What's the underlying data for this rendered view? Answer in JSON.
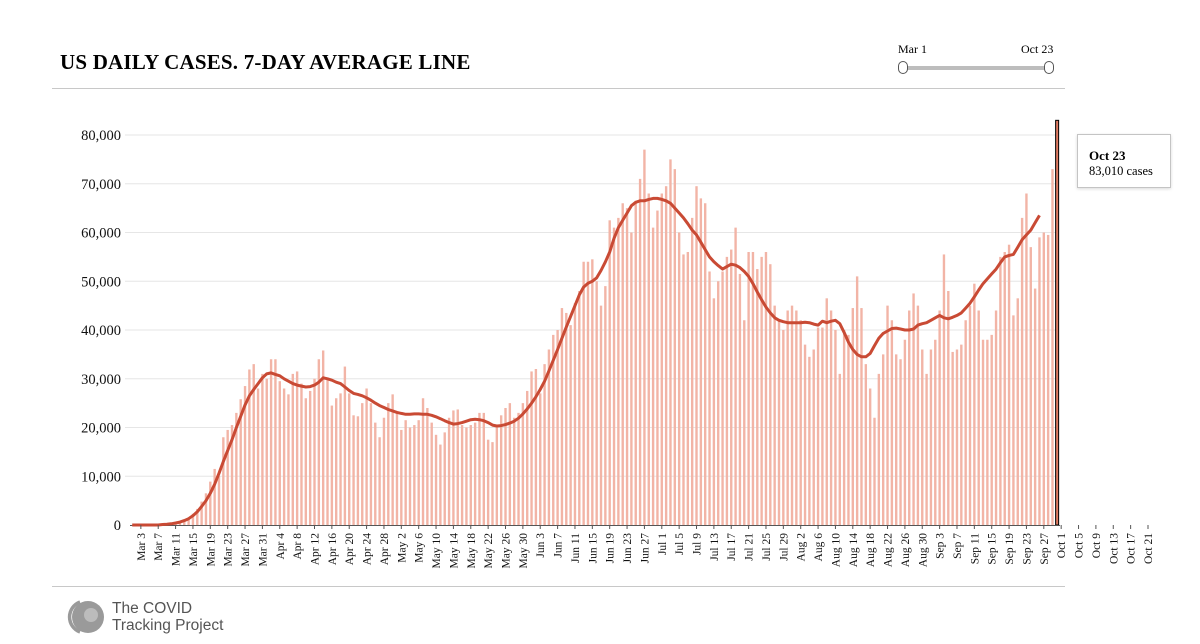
{
  "title": "US DAILY CASES. 7-DAY AVERAGE LINE",
  "slider": {
    "start_label": "Mar 1",
    "end_label": "Oct 23"
  },
  "tooltip": {
    "date": "Oct 23",
    "value": "83,010 cases"
  },
  "logo": {
    "line1": "The COVID",
    "line2": "Tracking Project"
  },
  "colors": {
    "bar": "#f2b4a6",
    "line": "#c94a34",
    "highlight_bar": "#e07a62",
    "grid": "#e6e6e6"
  },
  "chart_data": {
    "type": "bar",
    "title": "US DAILY CASES. 7-DAY AVERAGE LINE",
    "xlabel": "",
    "ylabel": "",
    "ylim": [
      0,
      80000
    ],
    "grid": true,
    "y_ticks": [
      "0",
      "10,000",
      "20,000",
      "30,000",
      "40,000",
      "50,000",
      "60,000",
      "70,000",
      "80,000"
    ],
    "y_tick_values": [
      0,
      10000,
      20000,
      30000,
      40000,
      50000,
      60000,
      70000,
      80000
    ],
    "x_tick_labels": [
      "Mar 3",
      "Mar 7",
      "Mar 11",
      "Mar 15",
      "Mar 19",
      "Mar 23",
      "Mar 27",
      "Mar 31",
      "Apr 4",
      "Apr 8",
      "Apr 12",
      "Apr 16",
      "Apr 20",
      "Apr 24",
      "Apr 28",
      "May 2",
      "May 6",
      "May 10",
      "May 14",
      "May 18",
      "May 22",
      "May 26",
      "May 30",
      "Jun 3",
      "Jun 7",
      "Jun 11",
      "Jun 15",
      "Jun 19",
      "Jun 23",
      "Jun 27",
      "Jul 1",
      "Jul 5",
      "Jul 9",
      "Jul 13",
      "Jul 17",
      "Jul 21",
      "Jul 25",
      "Jul 29",
      "Aug 2",
      "Aug 6",
      "Aug 10",
      "Aug 14",
      "Aug 18",
      "Aug 22",
      "Aug 26",
      "Aug 30",
      "Sep 3",
      "Sep 7",
      "Sep 11",
      "Sep 15",
      "Sep 19",
      "Sep 23",
      "Sep 27",
      "Oct 1",
      "Oct 5",
      "Oct 9",
      "Oct 13",
      "Oct 17",
      "Oct 21"
    ],
    "series": [
      {
        "type": "bar",
        "x_start": "Mar 1",
        "x_end": "Oct 23",
        "values": [
          0,
          0,
          0,
          0,
          0,
          0,
          0,
          100,
          200,
          300,
          500,
          700,
          1000,
          1500,
          2300,
          3300,
          4800,
          6500,
          8900,
          11500,
          10000,
          18000,
          19500,
          20500,
          23000,
          25800,
          28500,
          31900,
          33000,
          28000,
          31000,
          30000,
          34000,
          34000,
          29500,
          28000,
          26800,
          31000,
          31500,
          29000,
          26000,
          27500,
          30000,
          34000,
          35800,
          30000,
          24500,
          26000,
          27000,
          32500,
          27000,
          22500,
          22300,
          25000,
          28000,
          25000,
          21000,
          18000,
          22000,
          25000,
          26800,
          23000,
          19500,
          21500,
          20000,
          20500,
          21500,
          26000,
          24000,
          21000,
          18500,
          16500,
          19000,
          22000,
          23500,
          23700,
          20500,
          20000,
          20500,
          21000,
          23000,
          23000,
          17500,
          17000,
          20000,
          22500,
          24000,
          25000,
          22000,
          23000,
          25000,
          27500,
          31500,
          32000,
          27000,
          33000,
          36000,
          39000,
          40000,
          44500,
          43500,
          41000,
          45500,
          48000,
          54000,
          54000,
          54500,
          50000,
          45000,
          49000,
          62500,
          61000,
          63000,
          66000,
          65000,
          60000,
          66500,
          71000,
          77000,
          68000,
          61000,
          64500,
          68000,
          69500,
          75000,
          73000,
          60000,
          55500,
          56000,
          63000,
          69500,
          67000,
          66000,
          52000,
          46500,
          50000,
          52000,
          55000,
          56500,
          61000,
          51500,
          42000,
          56000,
          56000,
          52500,
          55000,
          56000,
          53500,
          45000,
          42000,
          40000,
          44000,
          45000,
          44000,
          42000,
          37000,
          34500,
          36000,
          40500,
          40500,
          46500,
          44000,
          40000,
          31000,
          40000,
          39000,
          44500,
          51000,
          44500,
          33000,
          28000,
          22000,
          31000,
          35000,
          45000,
          42000,
          35000,
          34000,
          38000,
          44000,
          47500,
          45000,
          36000,
          31000,
          36000,
          38000,
          44000,
          55500,
          48000,
          35500,
          36000,
          37000,
          42000,
          45000,
          49500,
          44000,
          38000,
          38000,
          39000,
          44000,
          55000,
          56000,
          57500,
          43000,
          46500,
          63000,
          68000,
          57000,
          48500,
          59000,
          60000,
          59500,
          73000,
          83010
        ]
      },
      {
        "type": "line",
        "name": "7-day average",
        "values": [
          0,
          0,
          0,
          0,
          0,
          0,
          0,
          100,
          150,
          250,
          400,
          600,
          900,
          1300,
          1900,
          2700,
          3800,
          5000,
          6500,
          8400,
          10600,
          13000,
          15300,
          17500,
          20000,
          22300,
          24600,
          26500,
          27800,
          29000,
          30200,
          31000,
          31200,
          30900,
          30600,
          30000,
          29500,
          29000,
          28700,
          28500,
          28300,
          28400,
          28700,
          29300,
          30200,
          30000,
          29700,
          29300,
          29000,
          28300,
          27600,
          27000,
          26800,
          26500,
          26100,
          25600,
          25000,
          24500,
          24100,
          23700,
          23400,
          23100,
          22900,
          22700,
          22700,
          22800,
          22800,
          22700,
          22700,
          22500,
          22200,
          21800,
          21400,
          21000,
          20700,
          20800,
          21000,
          21300,
          21600,
          21700,
          21600,
          21400,
          21000,
          20500,
          20300,
          20400,
          20600,
          20900,
          21300,
          21900,
          22800,
          23800,
          25000,
          26300,
          27800,
          29500,
          31600,
          33800,
          36000,
          38300,
          40600,
          42800,
          45000,
          47200,
          48800,
          49600,
          50000,
          50700,
          52200,
          54000,
          56000,
          58800,
          61000,
          62500,
          64000,
          65500,
          66200,
          66500,
          66500,
          66800,
          67000,
          67000,
          66800,
          66500,
          66000,
          65000,
          64000,
          63000,
          61800,
          60500,
          59500,
          58000,
          56500,
          55000,
          54000,
          53200,
          52500,
          53000,
          53500,
          53300,
          52800,
          52000,
          51000,
          49500,
          47800,
          46200,
          44700,
          43500,
          42500,
          42000,
          41700,
          41500,
          41500,
          41500,
          41500,
          41600,
          41500,
          41200,
          41000,
          41800,
          41500,
          41800,
          42000,
          41300,
          39500,
          37500,
          36000,
          35000,
          34500,
          34500,
          35200,
          36800,
          38300,
          39300,
          39800,
          40300,
          40400,
          40200,
          40000,
          40000,
          40200,
          41000,
          41300,
          41500,
          42000,
          42500,
          43000,
          42500,
          42300,
          42600,
          43000,
          43500,
          44500,
          45500,
          46800,
          48200,
          49500,
          50500,
          51500,
          52500,
          53800,
          55000,
          55300,
          55500,
          57000,
          58500,
          59500,
          60500,
          62000,
          63500
        ]
      }
    ],
    "highlight": {
      "label": "Oct 23",
      "value": 83010
    }
  }
}
